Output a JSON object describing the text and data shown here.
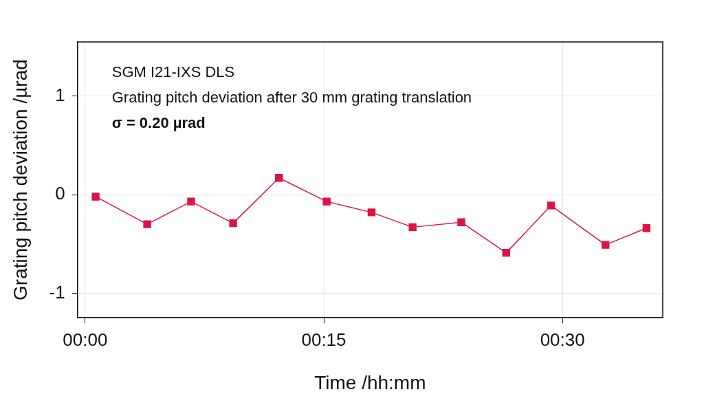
{
  "chart_data": {
    "type": "line",
    "xlabel": "Time /hh:mm",
    "ylabel": "Grating pitch deviation /µrad",
    "annotations": [
      "SGM I21-IXS DLS",
      "Grating pitch deviation after 30 mm grating translation",
      "σ = 0.20 µrad"
    ],
    "x": [
      0.011,
      0.065,
      0.111,
      0.155,
      0.203,
      0.253,
      0.3,
      0.343,
      0.394,
      0.441,
      0.488,
      0.545,
      0.588
    ],
    "series": [
      {
        "color": "#dc1446",
        "values": [
          -0.02,
          -0.3,
          -0.07,
          -0.29,
          0.17,
          -0.07,
          -0.18,
          -0.33,
          -0.28,
          -0.59,
          -0.11,
          -0.51,
          -0.34
        ]
      }
    ],
    "xlim": [
      -0.008,
      0.605
    ],
    "xticks": [
      {
        "value": 0,
        "label": "00:00"
      },
      {
        "value": 0.25,
        "label": "00:15"
      },
      {
        "value": 0.5,
        "label": "00:30"
      }
    ],
    "ylim": [
      -1.25,
      1.55
    ],
    "yticks": [
      -1,
      0,
      1
    ],
    "grid": true,
    "marker": "square",
    "line_style": "solid",
    "legend": false
  }
}
